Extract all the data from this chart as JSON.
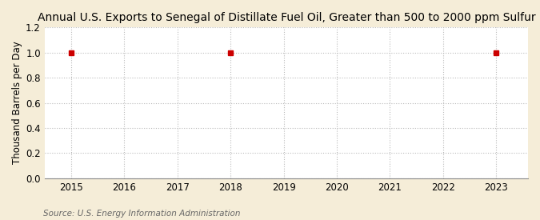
{
  "title": "Annual U.S. Exports to Senegal of Distillate Fuel Oil, Greater than 500 to 2000 ppm Sulfur",
  "ylabel": "Thousand Barrels per Day",
  "source": "Source: U.S. Energy Information Administration",
  "x_data": [
    2015,
    2018,
    2023
  ],
  "y_data": [
    1.0,
    1.0,
    1.0
  ],
  "xlim": [
    2014.5,
    2023.6
  ],
  "ylim": [
    0.0,
    1.2
  ],
  "yticks": [
    0.0,
    0.2,
    0.4,
    0.6,
    0.8,
    1.0,
    1.2
  ],
  "xticks": [
    2015,
    2016,
    2017,
    2018,
    2019,
    2020,
    2021,
    2022,
    2023
  ],
  "marker_color": "#CC0000",
  "marker_style": "s",
  "marker_size": 4,
  "figure_bg_color": "#F5EDD8",
  "plot_bg_color": "#FFFFFF",
  "grid_color": "#BBBBBB",
  "grid_linestyle": ":",
  "grid_linewidth": 0.8,
  "title_fontsize": 10,
  "label_fontsize": 8.5,
  "tick_fontsize": 8.5,
  "source_fontsize": 7.5
}
